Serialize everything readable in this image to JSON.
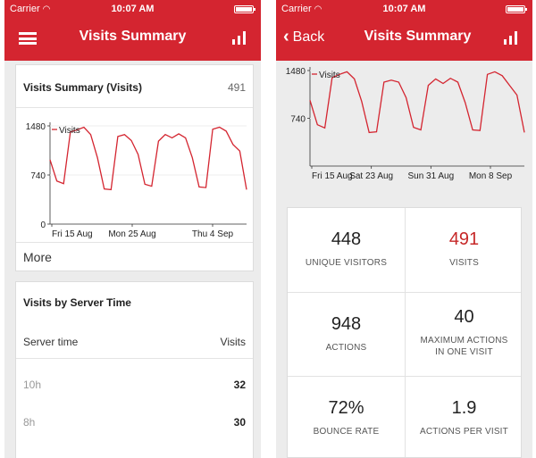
{
  "colors": {
    "brand": "#d42530",
    "line": "#d42530",
    "accent": "#c62828"
  },
  "status": {
    "carrier": "Carrier",
    "time": "10:07 AM"
  },
  "left": {
    "nav_title": "Visits Summary",
    "card1": {
      "title": "Visits Summary (Visits)",
      "count": "491",
      "more": "More",
      "chart_data": {
        "type": "line",
        "title": "",
        "series": [
          {
            "name": "Visits",
            "values": [
              970,
              650,
              610,
              1390,
              1420,
              1460,
              1350,
              1000,
              530,
              520,
              1320,
              1350,
              1260,
              1050,
              600,
              570,
              1250,
              1350,
              1300,
              1360,
              1300,
              1000,
              560,
              550,
              1430,
              1460,
              1400,
              1200,
              1100,
              520
            ]
          }
        ],
        "legend": "Visits",
        "yticks": [
          "0",
          "740",
          "1480"
        ],
        "xticks": [
          "Fri 15 Aug",
          "Mon 25 Aug",
          "Thu 4 Sep"
        ],
        "ylim": [
          0,
          1480
        ]
      }
    },
    "card2": {
      "title": "Visits by Server Time",
      "col_time": "Server time",
      "col_visits": "Visits",
      "rows": [
        {
          "time": "10h",
          "visits": "32"
        },
        {
          "time": "8h",
          "visits": "30"
        }
      ]
    }
  },
  "right": {
    "back_label": "Back",
    "nav_title": "Visits Summary",
    "chart_data": {
      "type": "line",
      "series": [
        {
          "name": "Visits",
          "values": [
            1020,
            640,
            590,
            1370,
            1420,
            1460,
            1350,
            1000,
            520,
            530,
            1300,
            1330,
            1300,
            1060,
            600,
            560,
            1250,
            1350,
            1280,
            1360,
            1300,
            980,
            560,
            550,
            1420,
            1460,
            1400,
            1250,
            1100,
            520
          ]
        }
      ],
      "legend": "Visits",
      "yticks": [
        "740",
        "1480"
      ],
      "xticks": [
        "Fri 15 Aug",
        "Sat 23 Aug",
        "Sun 31 Aug",
        "Mon 8 Sep"
      ],
      "ylim": [
        0,
        1480
      ]
    },
    "metrics": [
      {
        "value": "448",
        "label": "UNIQUE VISITORS"
      },
      {
        "value": "491",
        "label": "VISITS"
      },
      {
        "value": "948",
        "label": "ACTIONS"
      },
      {
        "value": "40",
        "label": "MAXIMUM ACTIONS IN ONE VISIT"
      },
      {
        "value": "72%",
        "label": "BOUNCE RATE"
      },
      {
        "value": "1.9",
        "label": "ACTIONS PER VISIT"
      }
    ]
  }
}
